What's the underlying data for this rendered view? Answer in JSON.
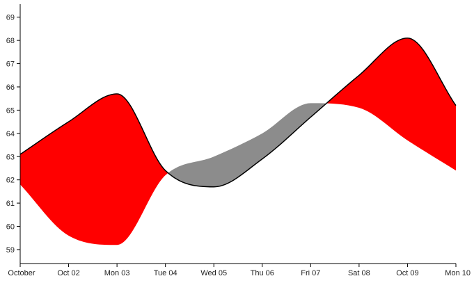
{
  "chart_data": {
    "type": "area",
    "title": "",
    "xlabel": "",
    "ylabel": "",
    "x_tick_labels": [
      "October",
      "Oct 02",
      "Mon 03",
      "Tue 04",
      "Wed 05",
      "Thu 06",
      "Fri 07",
      "Sat 08",
      "Oct 09",
      "Mon 10"
    ],
    "x": [
      "2016-10-01",
      "2016-10-02",
      "2016-10-03",
      "2016-10-04",
      "2016-10-05",
      "2016-10-06",
      "2016-10-07",
      "2016-10-08",
      "2016-10-09",
      "2016-10-10"
    ],
    "ylim": [
      58.4,
      69.5
    ],
    "y_ticks": [
      59,
      60,
      61,
      62,
      63,
      64,
      65,
      66,
      67,
      68,
      69
    ],
    "grid": false,
    "series": [
      {
        "values": [
          63.1,
          64.5,
          65.7,
          62.4,
          61.7,
          62.9,
          64.7,
          66.5,
          68.1,
          65.2
        ]
      },
      {
        "values": [
          61.8,
          59.6,
          59.2,
          62.2,
          63.0,
          64.0,
          65.3,
          65.1,
          63.7,
          62.4
        ]
      }
    ],
    "colors": {
      "above": "#ff0000",
      "below": "#8c8c8c",
      "line": "#000000"
    }
  }
}
